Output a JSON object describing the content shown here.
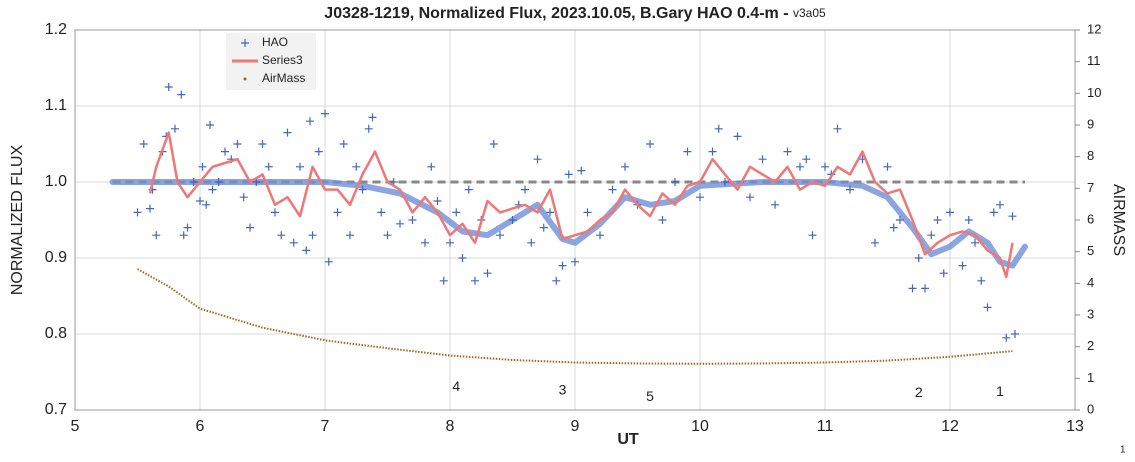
{
  "chart_data": {
    "type": "scatter",
    "title": "J0328-1219, Normalized Flux, 2023.10.05, B.Gary HAO 0.4-m -",
    "title_suffix": "v3a05",
    "xlabel": "UT",
    "ylabel": "NORMALIZED FLUX",
    "y2label": "AIRMASS",
    "page_number": "1",
    "xlim": [
      5,
      13
    ],
    "xticks": [
      5,
      6,
      7,
      8,
      9,
      10,
      11,
      12,
      13
    ],
    "ylim": [
      0.7,
      1.2
    ],
    "yticks": [
      0.7,
      0.8,
      0.9,
      {
        "value": 1,
        "label": "1.0"
      },
      1.1,
      1.2
    ],
    "y2lim": [
      0,
      12
    ],
    "y2ticks": [
      0,
      1,
      2,
      3,
      4,
      5,
      6,
      7,
      8,
      9,
      10,
      11,
      12
    ],
    "grid": true,
    "legend": "upper left",
    "series": [
      {
        "name": "HAO",
        "color": "#4466bb",
        "marker": "plus",
        "x": [
          5.5,
          5.55,
          5.6,
          5.62,
          5.65,
          5.7,
          5.73,
          5.75,
          5.8,
          5.85,
          5.87,
          5.9,
          5.95,
          6.0,
          6.02,
          6.05,
          6.08,
          6.1,
          6.15,
          6.2,
          6.25,
          6.3,
          6.35,
          6.4,
          6.45,
          6.5,
          6.55,
          6.6,
          6.65,
          6.7,
          6.75,
          6.8,
          6.85,
          6.88,
          6.9,
          6.95,
          7.0,
          7.03,
          7.1,
          7.15,
          7.2,
          7.25,
          7.3,
          7.35,
          7.38,
          7.45,
          7.5,
          7.55,
          7.6,
          7.7,
          7.8,
          7.85,
          7.9,
          7.95,
          8.0,
          8.05,
          8.1,
          8.15,
          8.2,
          8.25,
          8.3,
          8.35,
          8.4,
          8.5,
          8.55,
          8.6,
          8.65,
          8.7,
          8.75,
          8.8,
          8.85,
          8.9,
          8.95,
          9.0,
          9.05,
          9.1,
          9.2,
          9.3,
          9.4,
          9.5,
          9.6,
          9.7,
          9.8,
          9.9,
          10.0,
          10.1,
          10.15,
          10.2,
          10.3,
          10.4,
          10.5,
          10.6,
          10.7,
          10.8,
          10.85,
          10.9,
          11.0,
          11.05,
          11.1,
          11.2,
          11.3,
          11.4,
          11.5,
          11.55,
          11.6,
          11.7,
          11.75,
          11.8,
          11.85,
          11.9,
          11.95,
          12.0,
          12.1,
          12.15,
          12.2,
          12.25,
          12.3,
          12.35,
          12.4,
          12.45,
          12.5,
          12.52
        ],
        "values": [
          0.96,
          1.05,
          0.965,
          0.99,
          0.93,
          1.04,
          1.06,
          1.125,
          1.07,
          1.115,
          0.93,
          0.94,
          1.0,
          0.975,
          1.02,
          0.97,
          1.075,
          0.99,
          1.0,
          1.04,
          1.03,
          1.05,
          0.98,
          0.94,
          1.0,
          1.05,
          1.02,
          0.96,
          0.93,
          1.065,
          0.92,
          1.02,
          0.91,
          1.08,
          0.93,
          1.04,
          1.09,
          0.895,
          0.96,
          1.05,
          0.93,
          1.02,
          0.99,
          1.07,
          1.085,
          0.96,
          0.93,
          1.0,
          0.945,
          0.95,
          0.92,
          1.02,
          0.975,
          0.87,
          0.92,
          0.96,
          0.9,
          0.99,
          0.87,
          0.95,
          0.88,
          1.05,
          0.93,
          0.95,
          0.97,
          0.99,
          0.92,
          1.03,
          0.94,
          0.96,
          0.87,
          0.89,
          1.01,
          0.895,
          1.015,
          0.96,
          0.93,
          0.99,
          1.02,
          0.97,
          1.05,
          0.95,
          1.0,
          1.04,
          0.98,
          1.04,
          1.07,
          1.0,
          1.06,
          0.98,
          1.03,
          0.97,
          1.04,
          1.02,
          1.03,
          0.93,
          1.02,
          1.01,
          1.07,
          0.99,
          1.03,
          0.92,
          1.02,
          0.94,
          0.95,
          0.86,
          0.9,
          0.86,
          0.93,
          0.95,
          0.88,
          0.96,
          0.89,
          0.95,
          0.92,
          0.87,
          0.835,
          0.96,
          0.97,
          0.795,
          0.955,
          0.8
        ]
      },
      {
        "name": "Series3",
        "color": "#ee7777",
        "marker": "line",
        "x": [
          5.6,
          5.65,
          5.75,
          5.82,
          5.9,
          6.0,
          6.1,
          6.2,
          6.3,
          6.4,
          6.5,
          6.6,
          6.7,
          6.8,
          6.9,
          7.0,
          7.1,
          7.2,
          7.3,
          7.4,
          7.5,
          7.6,
          7.7,
          7.8,
          7.9,
          8.0,
          8.1,
          8.2,
          8.3,
          8.4,
          8.5,
          8.6,
          8.7,
          8.8,
          8.9,
          9.0,
          9.1,
          9.2,
          9.3,
          9.4,
          9.5,
          9.6,
          9.7,
          9.8,
          9.9,
          10.0,
          10.1,
          10.2,
          10.3,
          10.4,
          10.5,
          10.6,
          10.7,
          10.8,
          10.9,
          11.0,
          11.1,
          11.2,
          11.3,
          11.4,
          11.5,
          11.6,
          11.7,
          11.8,
          11.9,
          12.0,
          12.1,
          12.2,
          12.3,
          12.4,
          12.45,
          12.5
        ],
        "values": [
          0.985,
          1.02,
          1.065,
          1.0,
          0.98,
          1.0,
          1.02,
          1.025,
          1.03,
          1.0,
          1.01,
          0.97,
          0.98,
          0.955,
          1.02,
          0.99,
          0.99,
          0.97,
          1.01,
          1.04,
          1.0,
          0.99,
          0.96,
          0.98,
          0.96,
          0.93,
          0.945,
          0.92,
          0.975,
          0.96,
          0.965,
          0.97,
          0.96,
          0.99,
          0.925,
          0.93,
          0.935,
          0.95,
          0.96,
          0.99,
          0.97,
          0.955,
          0.985,
          0.97,
          0.995,
          1.0,
          1.03,
          1.01,
          0.99,
          1.02,
          1.01,
          1.0,
          1.02,
          0.99,
          1.0,
          0.995,
          1.02,
          1.01,
          1.04,
          1.0,
          0.985,
          0.99,
          0.95,
          0.905,
          0.92,
          0.93,
          0.935,
          0.93,
          0.91,
          0.9,
          0.875,
          0.92
        ]
      },
      {
        "name": "AirMass",
        "color": "#a0661e",
        "marker": "dotted",
        "axis": "y2",
        "x": [
          5.5,
          5.75,
          6.0,
          6.5,
          7.0,
          7.5,
          8.0,
          8.5,
          9.0,
          9.5,
          10.0,
          10.5,
          11.0,
          11.5,
          12.0,
          12.5
        ],
        "values": [
          4.45,
          3.9,
          3.2,
          2.6,
          2.2,
          1.95,
          1.72,
          1.58,
          1.5,
          1.47,
          1.46,
          1.47,
          1.5,
          1.56,
          1.68,
          1.86
        ]
      }
    ],
    "lines": [
      {
        "color": "#888888",
        "style": "dashed",
        "x": [
          5.3,
          12.6
        ],
        "values": [
          1,
          1
        ]
      },
      {
        "color": "#6f8fd8",
        "style": "thick",
        "x": [
          5.3,
          7.0,
          7.3,
          7.6,
          7.9,
          8.1,
          8.3,
          8.5,
          8.7,
          8.9,
          9.0,
          9.2,
          9.4,
          9.6,
          9.8,
          10.0,
          10.5,
          11.0,
          11.3,
          11.5,
          11.7,
          11.85,
          12.0,
          12.15,
          12.3,
          12.4,
          12.5,
          12.6
        ],
        "values": [
          1.0,
          1.0,
          0.995,
          0.985,
          0.96,
          0.935,
          0.93,
          0.95,
          0.97,
          0.925,
          0.92,
          0.945,
          0.98,
          0.97,
          0.975,
          0.995,
          1.0,
          1.0,
          0.995,
          0.98,
          0.94,
          0.905,
          0.915,
          0.935,
          0.92,
          0.895,
          0.89,
          0.915
        ]
      }
    ],
    "annotations": [
      {
        "text": "4",
        "x": 8.05,
        "y": 0.73
      },
      {
        "text": "3",
        "x": 8.9,
        "y": 0.725
      },
      {
        "text": "5",
        "x": 9.6,
        "y": 0.717
      },
      {
        "text": "2",
        "x": 11.75,
        "y": 0.722
      },
      {
        "text": "1",
        "x": 12.4,
        "y": 0.723
      }
    ]
  }
}
